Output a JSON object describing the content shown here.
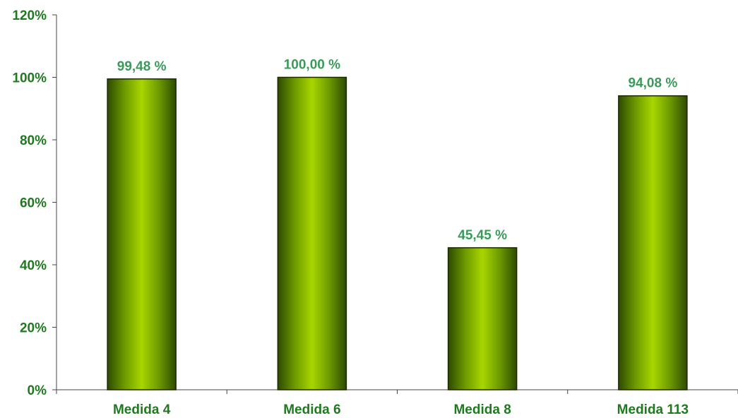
{
  "chart_data": {
    "type": "bar",
    "categories": [
      "Medida 4",
      "Medida 6",
      "Medida 8",
      "Medida 113"
    ],
    "values": [
      99.48,
      100.0,
      45.45,
      94.08
    ],
    "data_labels": [
      "99,48 %",
      "100,00 %",
      "45,45 %",
      "94,08 %"
    ],
    "y_ticks": [
      {
        "value": 0,
        "label": "0%"
      },
      {
        "value": 20,
        "label": "20%"
      },
      {
        "value": 40,
        "label": "40%"
      },
      {
        "value": 60,
        "label": "60%"
      },
      {
        "value": 80,
        "label": "80%"
      },
      {
        "value": 100,
        "label": "100%"
      },
      {
        "value": 120,
        "label": "120%"
      }
    ],
    "ylim": [
      0,
      120
    ],
    "grid": false,
    "title": "",
    "xlabel": "",
    "ylabel": "",
    "colors": {
      "bar_light": "#9acd00",
      "bar_dark": "#2e4a00",
      "bar_stroke": "#1a2a00",
      "axis": "#444444",
      "tick_text": "#1f7a1f",
      "data_label_text": "#3a9a5a"
    }
  }
}
